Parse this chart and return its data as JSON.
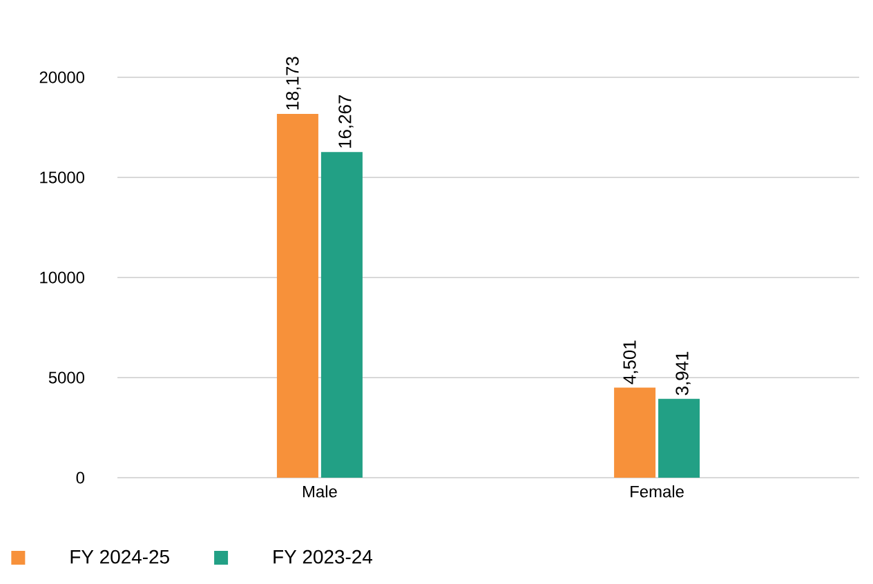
{
  "chart_data": {
    "type": "bar",
    "categories": [
      "Male",
      "Female"
    ],
    "series": [
      {
        "name": "FY 2024-25",
        "color": "#f7913a",
        "values": [
          18173,
          4501
        ],
        "value_labels": [
          "18,173",
          "4,501"
        ]
      },
      {
        "name": "FY 2023-24",
        "color": "#22a085",
        "values": [
          16267,
          3941
        ],
        "value_labels": [
          "16,267",
          "3,941"
        ]
      }
    ],
    "ylim": [
      0,
      20000
    ],
    "yticks": [
      0,
      5000,
      10000,
      15000,
      20000
    ],
    "grid": "y",
    "legend": "bottom"
  }
}
